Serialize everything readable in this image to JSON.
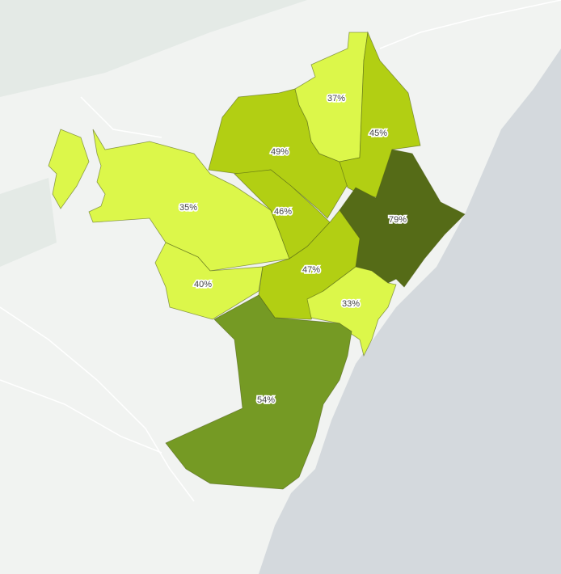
{
  "colors": {
    "land": "#f1f3f1",
    "park": "#e4eae6",
    "sea": "#d4d9dd",
    "scale": [
      "#dcf74a",
      "#b2cf13",
      "#759a24",
      "#556b17"
    ]
  },
  "districts": [
    {
      "value": "35%",
      "color": "#dcf74a"
    },
    {
      "value": "40%",
      "color": "#dcf74a"
    },
    {
      "value": "49%",
      "color": "#b2cf13"
    },
    {
      "value": "46%",
      "color": "#b2cf13"
    },
    {
      "value": "37%",
      "color": "#dcf74a"
    },
    {
      "value": "45%",
      "color": "#b2cf13"
    },
    {
      "value": "79%",
      "color": "#556b17"
    },
    {
      "value": "47%",
      "color": "#b2cf13"
    },
    {
      "value": "33%",
      "color": "#dcf74a"
    },
    {
      "value": "54%",
      "color": "#759a24"
    }
  ]
}
